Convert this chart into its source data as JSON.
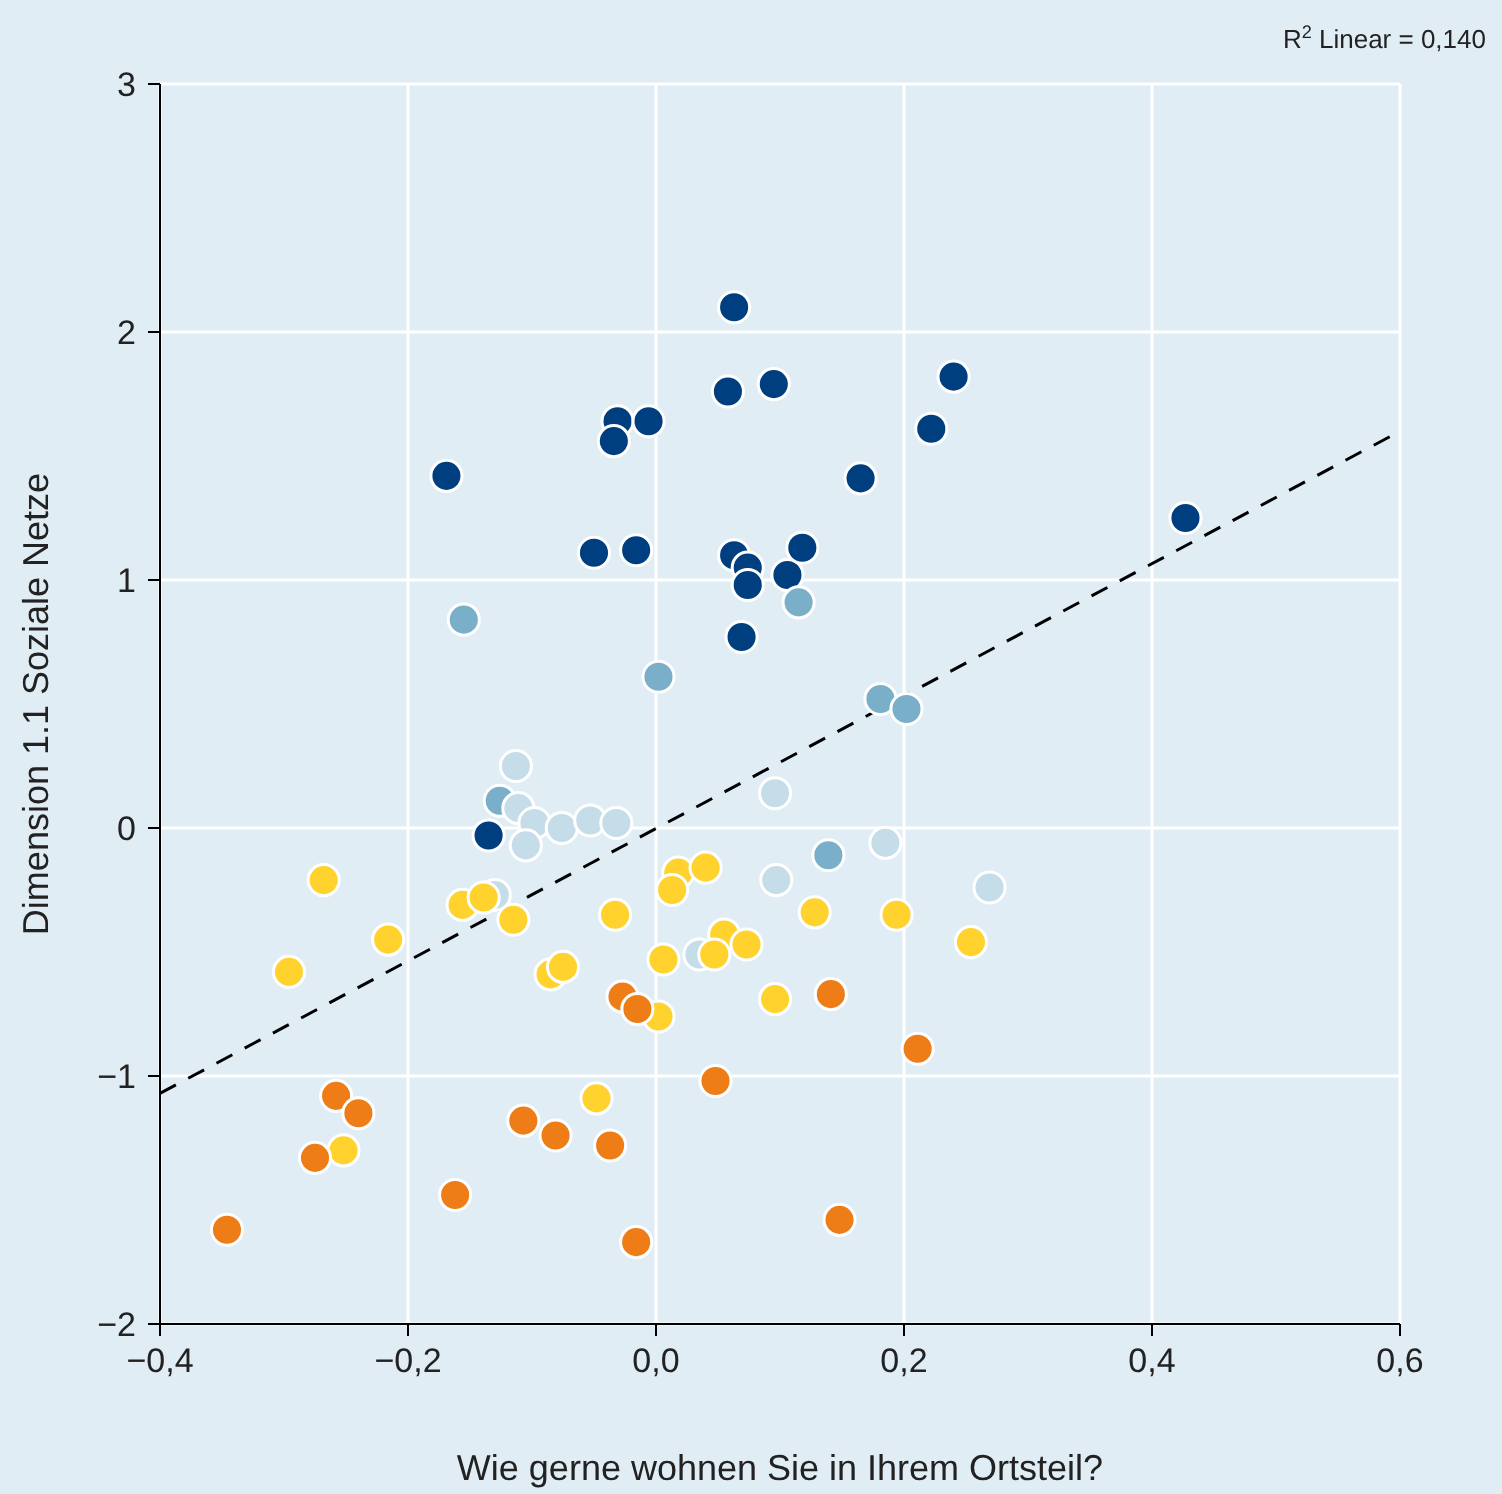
{
  "chart_data": {
    "type": "scatter",
    "xlabel": "Wie gerne wohnen Sie in Ihrem Ortsteil?",
    "ylabel": "Dimension 1.1 Soziale Netze",
    "annotations": [
      "R$^{2}$ Linear = 0,140"
    ],
    "xlim": [
      -0.4,
      0.6
    ],
    "ylim": [
      -2,
      3
    ],
    "xticks": [
      {
        "value": -0.4,
        "label": "−0,4"
      },
      {
        "value": -0.2,
        "label": "−0,2"
      },
      {
        "value": 0,
        "label": "0,0"
      },
      {
        "value": 0.2,
        "label": "0,2"
      },
      {
        "value": 0.4,
        "label": "0,4"
      },
      {
        "value": 0.6,
        "label": "0,6"
      }
    ],
    "yticks": [
      {
        "value": -2,
        "label": "−2"
      },
      {
        "value": -1,
        "label": "−1"
      },
      0,
      1,
      2,
      3
    ],
    "grid": true,
    "marker": "circle",
    "series": [
      {
        "color": "#003f7f",
        "x": [
          0.063,
          0.058,
          0.095,
          -0.031,
          -0.006,
          -0.034,
          -0.169,
          0.165,
          0.24,
          0.222,
          -0.05,
          -0.016,
          0.063,
          0.074,
          0.074,
          0.106,
          0.118,
          0.069,
          0.427,
          -0.135
        ],
        "values": [
          2.1,
          1.76,
          1.79,
          1.64,
          1.64,
          1.56,
          1.42,
          1.41,
          1.82,
          1.61,
          1.11,
          1.12,
          1.1,
          1.05,
          0.98,
          1.02,
          1.13,
          0.77,
          1.25,
          -0.03
        ]
      },
      {
        "color": "#7aafca",
        "x": [
          -0.155,
          0.002,
          0.115,
          0.181,
          0.202,
          -0.126,
          0.139
        ],
        "values": [
          0.84,
          0.61,
          0.91,
          0.52,
          0.48,
          0.11,
          -0.11
        ]
      },
      {
        "color": "#c5dce9",
        "x": [
          -0.113,
          -0.111,
          -0.098,
          -0.105,
          -0.076,
          -0.053,
          -0.032,
          -0.13,
          0.035,
          0.096,
          0.185,
          0.097,
          0.269
        ],
        "values": [
          0.25,
          0.08,
          0.02,
          -0.07,
          0,
          0.03,
          0.02,
          -0.27,
          -0.51,
          0.14,
          -0.06,
          -0.21,
          -0.24
        ]
      },
      {
        "color": "#ffd22e",
        "x": [
          -0.268,
          -0.216,
          -0.296,
          -0.156,
          -0.139,
          -0.115,
          -0.085,
          -0.075,
          -0.033,
          0.018,
          0.04,
          0.013,
          0.006,
          0.002,
          -0.048,
          -0.252,
          0.055,
          0.047,
          0.073,
          0.128,
          0.194,
          0.254,
          0.096
        ],
        "values": [
          -0.21,
          -0.45,
          -0.58,
          -0.31,
          -0.28,
          -0.37,
          -0.59,
          -0.56,
          -0.35,
          -0.18,
          -0.16,
          -0.25,
          -0.53,
          -0.76,
          -1.09,
          -1.3,
          -0.43,
          -0.51,
          -0.47,
          -0.34,
          -0.35,
          -0.46,
          -0.69
        ]
      },
      {
        "color": "#ef7d17",
        "x": [
          -0.258,
          -0.24,
          -0.275,
          -0.346,
          -0.162,
          -0.107,
          -0.081,
          -0.037,
          -0.016,
          -0.027,
          -0.015,
          0.048,
          0.141,
          0.211,
          0.148
        ],
        "values": [
          -1.08,
          -1.15,
          -1.33,
          -1.62,
          -1.48,
          -1.18,
          -1.24,
          -1.28,
          -1.67,
          -0.68,
          -0.73,
          -1.02,
          -0.67,
          -0.89,
          -1.58
        ]
      },
      {
        "type": "line",
        "color": "#000000",
        "line_style": "dashed",
        "marker": "none",
        "x": [
          -0.4,
          0.6
        ],
        "values": [
          -1.07,
          1.6
        ]
      }
    ]
  }
}
